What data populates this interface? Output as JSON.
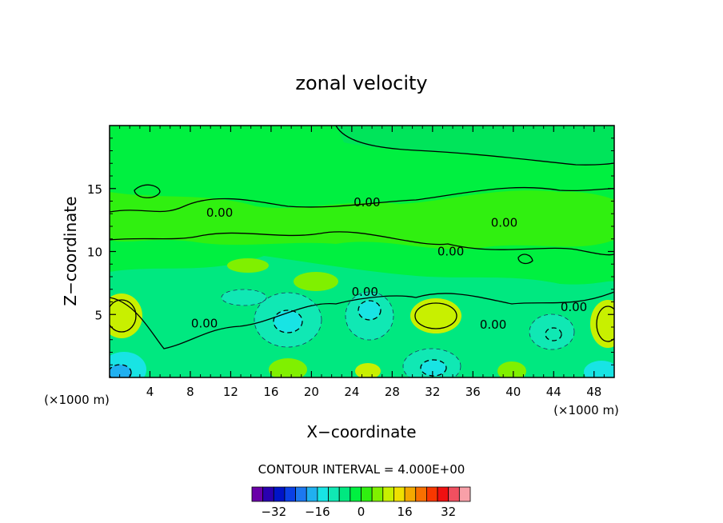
{
  "chart_data": {
    "type": "contour",
    "title": "zonal velocity",
    "xlabel": "X−coordinate",
    "ylabel": "Z−coordinate",
    "x_unit": "(×1000 m)",
    "z_unit": "(×1000 m)",
    "xlim": [
      0,
      50
    ],
    "ylim": [
      0,
      20
    ],
    "x_ticks": [
      4,
      8,
      12,
      16,
      20,
      24,
      28,
      32,
      36,
      40,
      44,
      48
    ],
    "x_tick_labels": [
      "4",
      "8",
      "12",
      "16",
      "20",
      "24",
      "28",
      "32",
      "36",
      "40",
      "44",
      "48"
    ],
    "y_ticks": [
      5,
      10,
      15
    ],
    "y_tick_labels": [
      "5",
      "10",
      "15"
    ],
    "contour_interval_text": "CONTOUR INTERVAL = 4.000E+00",
    "contour_labels": [
      {
        "text": "0.00",
        "x": 10.9,
        "z": 12.9
      },
      {
        "text": "0.00",
        "x": 25.5,
        "z": 13.7
      },
      {
        "text": "0.00",
        "x": 39.1,
        "z": 12.1
      },
      {
        "text": "0.00",
        "x": 33.8,
        "z": 9.8
      },
      {
        "text": "0.00",
        "x": 25.3,
        "z": 6.6
      },
      {
        "text": "0.00",
        "x": 9.4,
        "z": 4.1
      },
      {
        "text": "0.00",
        "x": 46.0,
        "z": 5.4
      },
      {
        "text": "0.00",
        "x": 38.0,
        "z": 4.0
      }
    ],
    "features": [
      {
        "kind": "max",
        "x": 1.5,
        "z": 4.6,
        "value": 12
      },
      {
        "kind": "max",
        "x": 31.8,
        "z": 5.0,
        "value": 12
      },
      {
        "kind": "max",
        "x": 49.0,
        "z": 4.2,
        "value": 8
      },
      {
        "kind": "min",
        "x": 18.0,
        "z": 4.6,
        "value": -8
      },
      {
        "kind": "min",
        "x": 25.5,
        "z": 5.0,
        "value": -8
      },
      {
        "kind": "min",
        "x": 44.0,
        "z": 3.6,
        "value": -4
      },
      {
        "kind": "min",
        "x": 31.5,
        "z": 1.2,
        "value": -8
      },
      {
        "kind": "min",
        "x": 1.5,
        "z": 0.8,
        "value": -12
      },
      {
        "kind": "min",
        "x": 49.5,
        "z": 0.8,
        "value": -8
      },
      {
        "kind": "max",
        "x": 16.5,
        "z": 0.6,
        "value": 8
      },
      {
        "kind": "max",
        "x": 25.5,
        "z": 0.5,
        "value": 8
      },
      {
        "kind": "max",
        "x": 40.5,
        "z": 0.6,
        "value": 8
      }
    ],
    "colorbar": {
      "ticks": [
        -32,
        -16,
        0,
        16,
        32
      ],
      "tick_labels": [
        "−32",
        "−16",
        "0",
        "16",
        "32"
      ],
      "colors": [
        "#6a00a8",
        "#2a00b0",
        "#0014c8",
        "#0a40e6",
        "#1c78f0",
        "#20b0f0",
        "#18e4e4",
        "#10e8b4",
        "#00e880",
        "#00f040",
        "#30f010",
        "#80f000",
        "#c8f000",
        "#f0e000",
        "#f4a800",
        "#f87000",
        "#f83800",
        "#f01010",
        "#f05060",
        "#f8a0a8"
      ]
    }
  }
}
